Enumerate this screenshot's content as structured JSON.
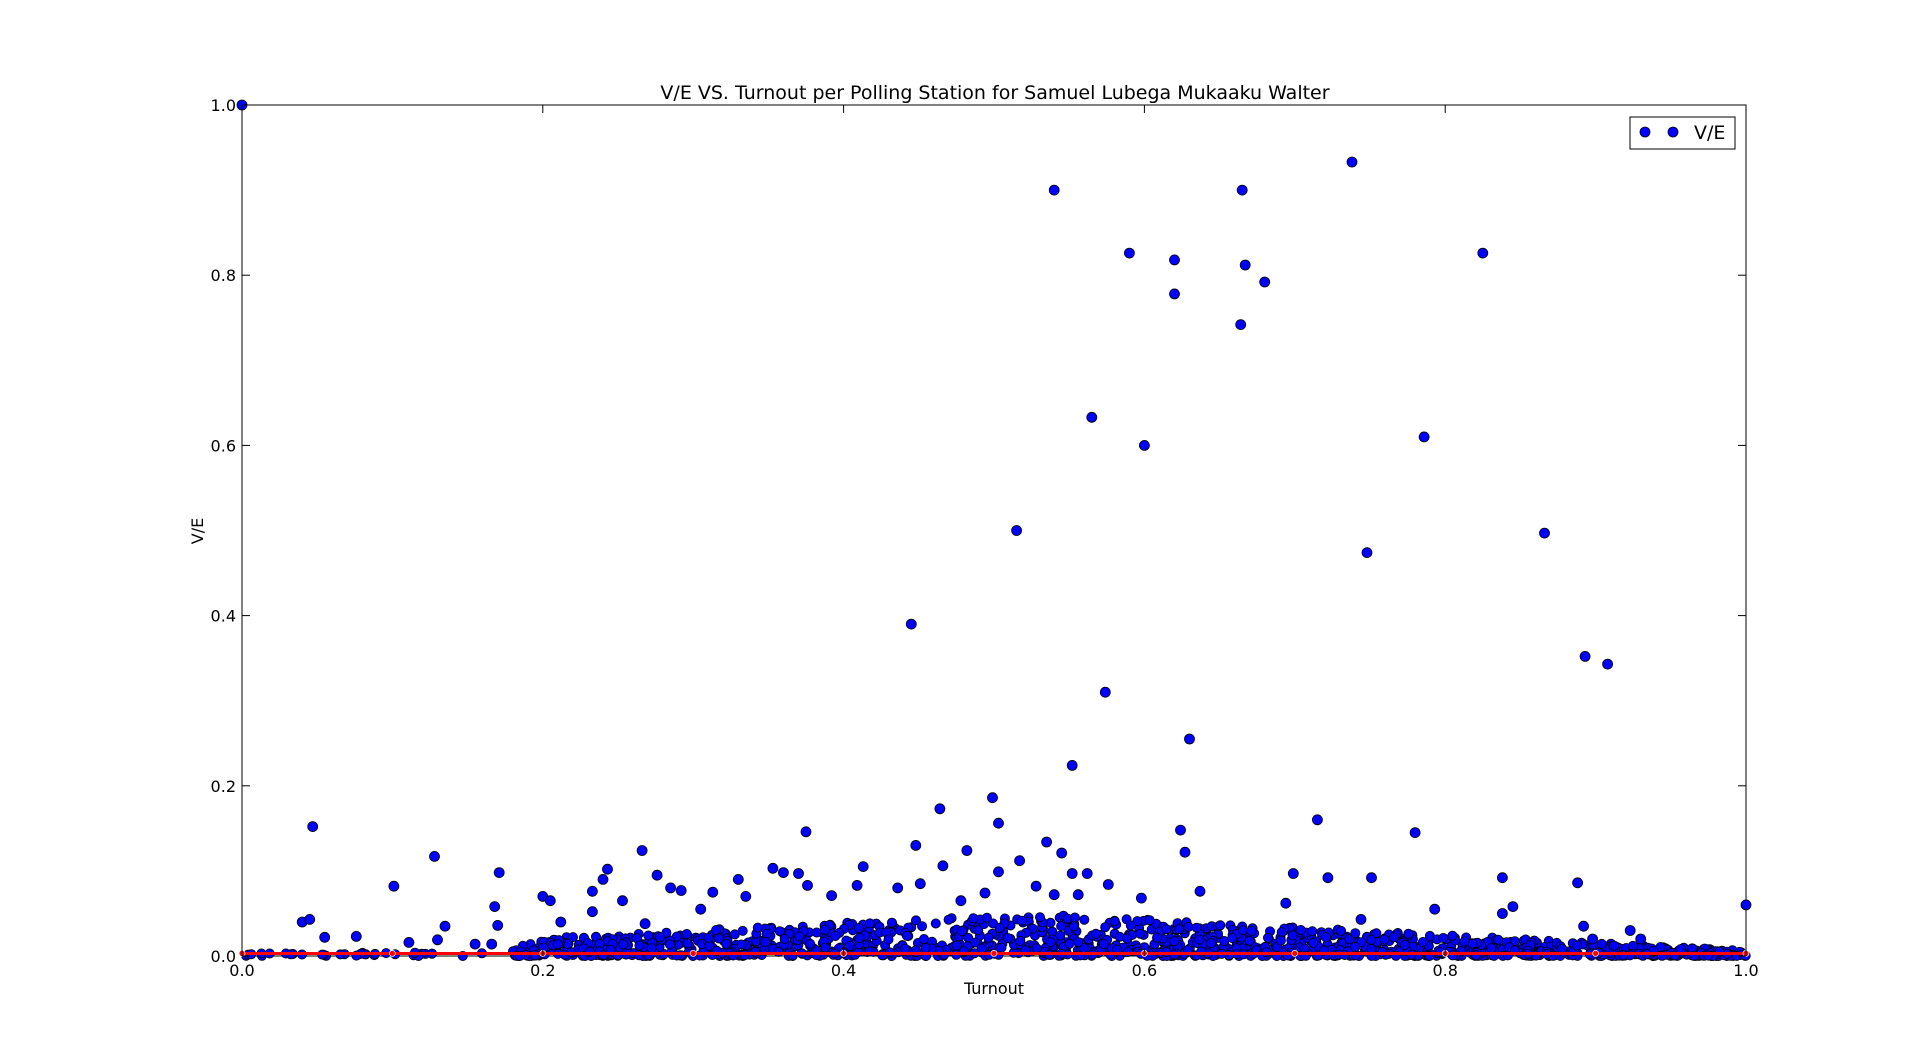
{
  "chart_data": {
    "type": "scatter",
    "title": "V/E VS. Turnout per Polling Station for Samuel Lubega Mukaaku Walter",
    "xlabel": "Turnout",
    "ylabel": "V/E",
    "xlim": [
      0.0,
      1.0
    ],
    "ylim": [
      0.0,
      1.0
    ],
    "xticks": [
      "0.0",
      "0.2",
      "0.4",
      "0.6",
      "0.8",
      "1.0"
    ],
    "yticks": [
      "0.0",
      "0.2",
      "0.4",
      "0.6",
      "0.8",
      "1.0"
    ],
    "grid": false,
    "legend": {
      "position": "top-right",
      "entries": [
        "V/E"
      ]
    },
    "series": [
      {
        "name": "V/E",
        "color": "#0000ff",
        "edge_color": "#000000",
        "marker": "circle",
        "points": [
          [
            0.0,
            1.0
          ],
          [
            0.54,
            0.9
          ],
          [
            0.59,
            0.826
          ],
          [
            0.62,
            0.818
          ],
          [
            0.62,
            0.778
          ],
          [
            0.665,
            0.9
          ],
          [
            0.667,
            0.812
          ],
          [
            0.68,
            0.792
          ],
          [
            0.664,
            0.742
          ],
          [
            0.738,
            0.933
          ],
          [
            0.825,
            0.826
          ],
          [
            0.786,
            0.61
          ],
          [
            0.565,
            0.633
          ],
          [
            0.6,
            0.6
          ],
          [
            0.515,
            0.5
          ],
          [
            0.748,
            0.474
          ],
          [
            0.866,
            0.497
          ],
          [
            0.445,
            0.39
          ],
          [
            0.574,
            0.31
          ],
          [
            0.893,
            0.352
          ],
          [
            0.908,
            0.343
          ],
          [
            0.63,
            0.255
          ],
          [
            0.552,
            0.224
          ],
          [
            0.499,
            0.186
          ],
          [
            0.464,
            0.173
          ],
          [
            0.503,
            0.156
          ],
          [
            0.047,
            0.152
          ],
          [
            0.375,
            0.146
          ],
          [
            0.624,
            0.148
          ],
          [
            0.715,
            0.16
          ],
          [
            0.78,
            0.145
          ],
          [
            0.128,
            0.117
          ],
          [
            0.266,
            0.124
          ],
          [
            0.482,
            0.124
          ],
          [
            0.535,
            0.134
          ],
          [
            0.545,
            0.121
          ],
          [
            0.627,
            0.122
          ],
          [
            0.101,
            0.082
          ],
          [
            0.171,
            0.098
          ],
          [
            0.243,
            0.102
          ],
          [
            0.276,
            0.095
          ],
          [
            0.33,
            0.09
          ],
          [
            0.353,
            0.103
          ],
          [
            0.36,
            0.098
          ],
          [
            0.37,
            0.097
          ],
          [
            0.413,
            0.105
          ],
          [
            0.448,
            0.13
          ],
          [
            0.466,
            0.106
          ],
          [
            0.517,
            0.112
          ],
          [
            0.552,
            0.097
          ],
          [
            0.562,
            0.097
          ],
          [
            0.699,
            0.097
          ],
          [
            0.722,
            0.092
          ],
          [
            0.751,
            0.092
          ],
          [
            0.838,
            0.092
          ],
          [
            0.888,
            0.086
          ],
          [
            1.0,
            0.06
          ],
          [
            0.04,
            0.04
          ],
          [
            0.045,
            0.043
          ],
          [
            0.055,
            0.022
          ],
          [
            0.076,
            0.023
          ],
          [
            0.111,
            0.016
          ],
          [
            0.13,
            0.019
          ],
          [
            0.135,
            0.035
          ],
          [
            0.155,
            0.014
          ],
          [
            0.166,
            0.014
          ],
          [
            0.168,
            0.058
          ],
          [
            0.17,
            0.036
          ],
          [
            0.2,
            0.07
          ],
          [
            0.205,
            0.065
          ],
          [
            0.212,
            0.04
          ],
          [
            0.233,
            0.076
          ],
          [
            0.233,
            0.052
          ],
          [
            0.24,
            0.09
          ],
          [
            0.253,
            0.065
          ],
          [
            0.268,
            0.038
          ],
          [
            0.285,
            0.08
          ],
          [
            0.292,
            0.077
          ],
          [
            0.305,
            0.055
          ],
          [
            0.313,
            0.075
          ],
          [
            0.335,
            0.07
          ],
          [
            0.376,
            0.083
          ],
          [
            0.392,
            0.071
          ],
          [
            0.409,
            0.083
          ],
          [
            0.436,
            0.08
          ],
          [
            0.451,
            0.085
          ],
          [
            0.478,
            0.065
          ],
          [
            0.494,
            0.074
          ],
          [
            0.503,
            0.099
          ],
          [
            0.528,
            0.082
          ],
          [
            0.54,
            0.072
          ],
          [
            0.556,
            0.072
          ],
          [
            0.576,
            0.084
          ],
          [
            0.598,
            0.068
          ],
          [
            0.637,
            0.076
          ],
          [
            0.694,
            0.062
          ],
          [
            0.744,
            0.043
          ],
          [
            0.793,
            0.055
          ],
          [
            0.838,
            0.05
          ],
          [
            0.845,
            0.058
          ],
          [
            0.892,
            0.035
          ],
          [
            0.898,
            0.02
          ],
          [
            0.923,
            0.03
          ],
          [
            0.93,
            0.02
          ]
        ],
        "dense_band": {
          "x_range": [
            0.18,
            1.0
          ],
          "y_range": [
            0.0,
            0.05
          ],
          "peak_x": 0.52
        }
      },
      {
        "name": "",
        "color": "#ff0000",
        "edge_color": "#ffffff",
        "marker": "circle",
        "points": [
          [
            0.0,
            0.003
          ],
          [
            0.1,
            0.003
          ],
          [
            0.2,
            0.003
          ],
          [
            0.3,
            0.003
          ],
          [
            0.4,
            0.003
          ],
          [
            0.5,
            0.003
          ],
          [
            0.6,
            0.003
          ],
          [
            0.7,
            0.003
          ],
          [
            0.8,
            0.003
          ],
          [
            0.9,
            0.003
          ],
          [
            1.0,
            0.003
          ]
        ]
      }
    ]
  }
}
